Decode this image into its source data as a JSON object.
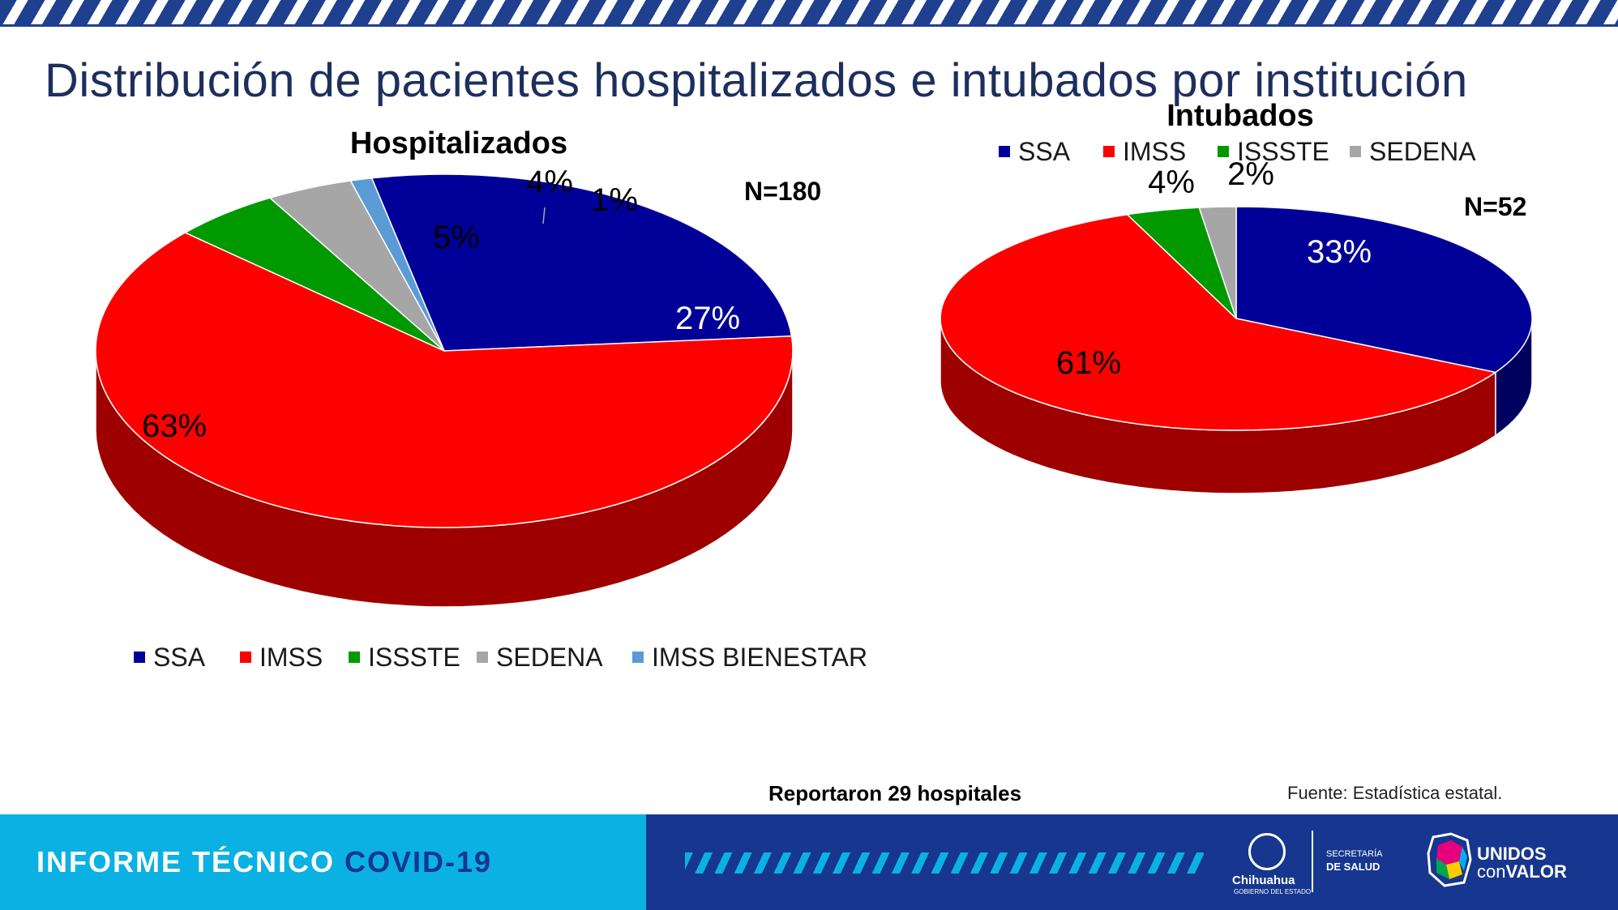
{
  "slide": {
    "title": "Distribución de pacientes hospitalizados e intubados por institución",
    "report_note": "Reportaron 29 hospitales",
    "source": "Fuente: Estadística estatal."
  },
  "footer": {
    "title_part1": "INFORME TÉCNICO ",
    "title_part2": "COVID-19",
    "logo_chihuahua": "Chihuahua",
    "logo_chihuahua_sub": "GOBIERNO DEL ESTADO",
    "secretaria_line1": "SECRETARÍA",
    "secretaria_line2": "DE SALUD",
    "unidos_line1": "UNIDOS",
    "unidos_line2a": "con",
    "unidos_line2b": "VALOR"
  },
  "colors": {
    "SSA": "#000099",
    "IMSS": "#ff0000",
    "ISSSTE": "#009900",
    "SEDENA": "#a6a6a6",
    "IMSS BIENESTAR": "#5b9bd5"
  },
  "chart_data": [
    {
      "type": "pie",
      "title": "Hospitalizados",
      "n_label": "N=180",
      "categories": [
        "SSA",
        "IMSS",
        "ISSSTE",
        "SEDENA",
        "IMSS BIENESTAR"
      ],
      "values": [
        27,
        63,
        5,
        4,
        1
      ],
      "data_labels": [
        "27%",
        "63%",
        "5%",
        "4%",
        "1%"
      ],
      "legend": [
        "SSA",
        "IMSS",
        "ISSSTE",
        "SEDENA",
        "IMSS BIENESTAR"
      ],
      "legend_position": "bottom"
    },
    {
      "type": "pie",
      "title": "Intubados",
      "n_label": "N=52",
      "categories": [
        "SSA",
        "IMSS",
        "ISSSTE",
        "SEDENA"
      ],
      "values": [
        33,
        61,
        4,
        2
      ],
      "data_labels": [
        "33%",
        "61%",
        "4%",
        "2%"
      ],
      "legend": [
        "SSA",
        "IMSS",
        "ISSSTE",
        "SEDENA"
      ],
      "legend_position": "top"
    }
  ]
}
